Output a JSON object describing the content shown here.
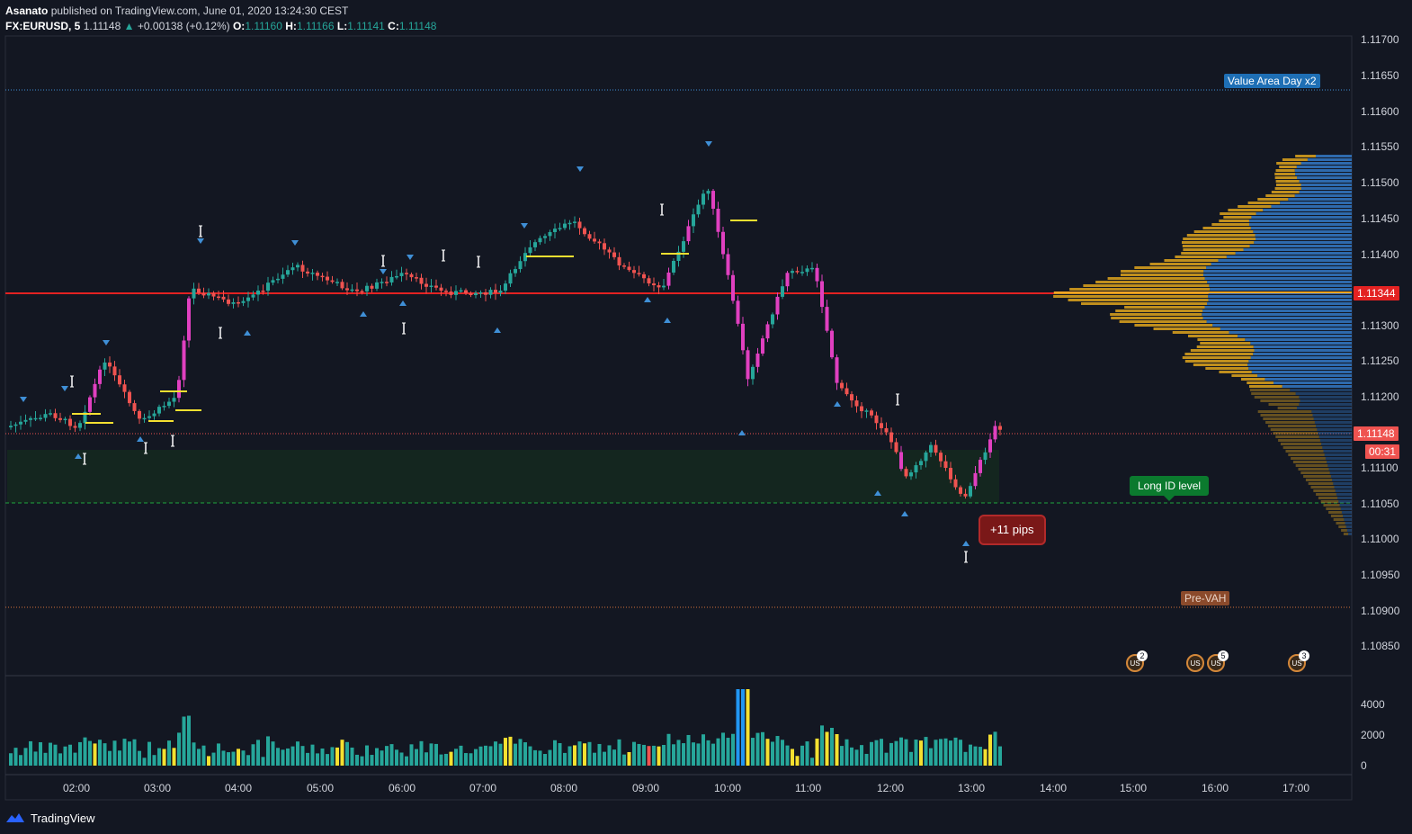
{
  "header": {
    "author": "Asanato",
    "published": "published on TradingView.com, June 01, 2020 13:24:30 CEST",
    "symbol": "FX:EURUSD, 5",
    "last": "1.11148",
    "change": "+0.00138 (+0.12%)",
    "o_label": "O:",
    "o": "1.11160",
    "h_label": "H:",
    "h": "1.11166",
    "l_label": "L:",
    "l": "1.11141",
    "c_label": "C:",
    "c": "1.11148"
  },
  "price_axis": [
    "1.11700",
    "1.11650",
    "1.11600",
    "1.11550",
    "1.11500",
    "1.11450",
    "1.11400",
    "1.11300",
    "1.11250",
    "1.11200",
    "1.11100",
    "1.11050",
    "1.11000",
    "1.10950",
    "1.10900",
    "1.10850"
  ],
  "volume_axis": [
    "4000",
    "2000",
    "0"
  ],
  "time_axis": [
    "02:00",
    "03:00",
    "04:00",
    "05:00",
    "06:00",
    "07:00",
    "08:00",
    "09:00",
    "10:00",
    "11:00",
    "12:00",
    "13:00",
    "14:00",
    "15:00",
    "16:00",
    "17:00"
  ],
  "labels": {
    "value_area": "Value Area Day x2",
    "pre_vah": "Pre-VAH",
    "long_id": "Long ID level",
    "pips": "+11 pips",
    "current_price": "1.11148",
    "timer": "00:31",
    "poc_price": "1.11344"
  },
  "events": [
    {
      "badge": "2"
    },
    {
      "badge": ""
    },
    {
      "badge": "5"
    },
    {
      "badge": "3"
    }
  ],
  "footer": {
    "brand": "TradingView"
  },
  "colors": {
    "background": "#131722",
    "bull": "#26a69a",
    "bear": "#ef5350",
    "magenta": "#e040c0",
    "poc_line": "#e32222",
    "long_id": "#1fa53f",
    "profile_up": "#2f6fb5",
    "profile_down": "#c9961e"
  }
}
